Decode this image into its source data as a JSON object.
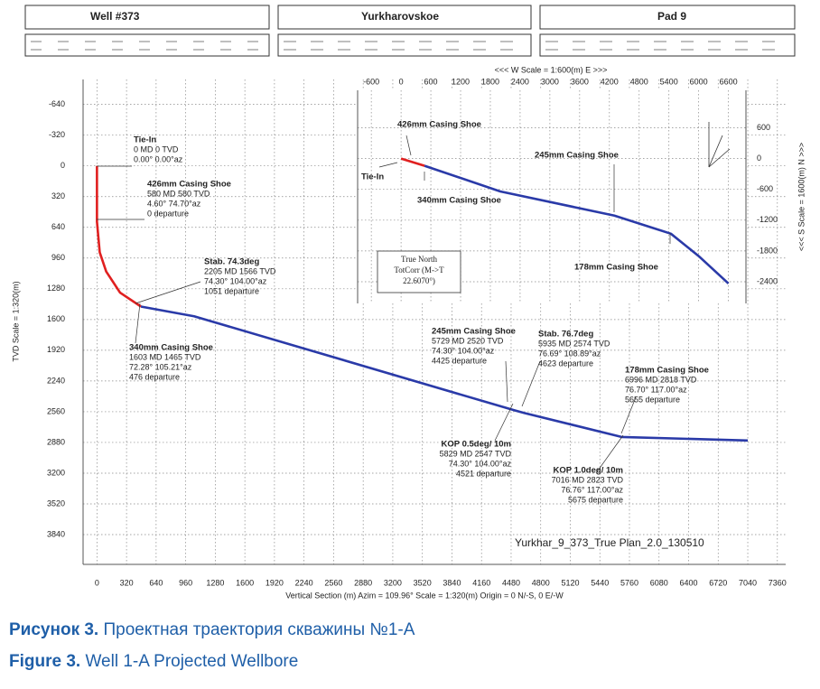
{
  "header": {
    "well": "Well #373",
    "field": "Yurkharovskoe",
    "pad": "Pad 9"
  },
  "caption": {
    "ru_label": "Рисунок 3.",
    "ru_text": "Проектная траектория скважины №1-А",
    "en_label": "Figure 3.",
    "en_text": "Well 1-A Projected Wellbore"
  },
  "chart_data": [
    {
      "type": "line",
      "x_label": "Vertical Section (m) Azim = 109.96° Scale = 1:320(m) Origin = 0 N/-S, 0 E/-W",
      "y_label": "TVD Scale = 1:320(m)",
      "xlim": [
        -150,
        7450
      ],
      "ylim": [
        -900,
        4150
      ],
      "y_inverted": true,
      "grid": true,
      "xticks": [
        0,
        320,
        640,
        960,
        1280,
        1600,
        1920,
        2240,
        2560,
        2880,
        3200,
        3520,
        3840,
        4160,
        4480,
        4800,
        5120,
        5440,
        5760,
        6080,
        6400,
        6720,
        7040,
        7360
      ],
      "yticks": [
        -640,
        -320,
        0,
        320,
        640,
        960,
        1280,
        1600,
        1920,
        2240,
        2560,
        2880,
        3200,
        3520,
        3840
      ],
      "series": [
        {
          "color": "#e02020",
          "x": [
            0,
            0,
            30,
            100,
            250,
            476
          ],
          "values": [
            0,
            580,
            900,
            1100,
            1320,
            1465
          ]
        },
        {
          "color": "#2a3aa8",
          "x": [
            476,
            1051,
            4425,
            4521,
            4623,
            5655,
            5675,
            7040
          ],
          "values": [
            1465,
            1566,
            2520,
            2547,
            2574,
            2818,
            2823,
            2860
          ]
        }
      ],
      "annotations": [
        [
          "Tie-In",
          "0 MD  0 TVD",
          "0.00°  0.00°az"
        ],
        [
          "426mm Casing Shoe",
          "580 MD  580 TVD",
          "4.60°  74.70°az",
          "0 departure"
        ],
        [
          "Stab. 74.3deg",
          "2205 MD  1566 TVD",
          "74.30°  104.00°az",
          "1051 departure"
        ],
        [
          "340mm Casing Shoe",
          "1603 MD  1465 TVD",
          "72.28°  105.21°az",
          "476 departure"
        ],
        [
          "245mm Casing Shoe",
          "5729 MD  2520 TVD",
          "74.30°  104.00°az",
          "4425 departure"
        ],
        [
          "Stab. 76.7deg",
          "5935 MD  2574 TVD",
          "76.69°  108.89°az",
          "4623 departure"
        ],
        [
          "178mm Casing Shoe",
          "6996 MD  2818 TVD",
          "76.70°  117.00°az",
          "5655 departure"
        ],
        [
          "KOP 0.5deg/ 10m",
          "5829 MD  2547 TVD",
          "74.30°  104.00°az",
          "4521 departure"
        ],
        [
          "KOP 1.0deg/ 10m",
          "7016 MD  2823 TVD",
          "76.76°  117.00°az",
          "5675 departure"
        ]
      ],
      "plan_name": "Yurkhar_9_373_True Plan_2.0_130510"
    },
    {
      "type": "line",
      "x_label": "<<< W  Scale = 1:600(m)  E >>>",
      "y_label": "<<< S  Scale = 1600(m)  N >>>",
      "xlim": [
        -876,
        6953
      ],
      "ylim": [
        -2822,
        1330
      ],
      "grid": true,
      "xticks": [
        -600,
        0,
        600,
        1200,
        1800,
        2400,
        3000,
        3600,
        4200,
        4800,
        5400,
        6000,
        6600
      ],
      "yticks": [
        600,
        0,
        -600,
        -1200,
        -1800,
        -2400
      ],
      "series": [
        {
          "color": "#e02020",
          "x": [
            0,
            474
          ],
          "values": [
            0,
            -141
          ]
        },
        {
          "color": "#2a3aa8",
          "x": [
            474,
            2000,
            4300,
            5440,
            6000,
            6600
          ],
          "values": [
            -141,
            -640,
            -1111,
            -1464,
            -1900,
            -2434
          ]
        }
      ],
      "annotations": [
        [
          "426mm Casing Shoe"
        ],
        [
          "Tie-In"
        ],
        [
          "340mm Casing Shoe"
        ],
        [
          "245mm Casing Shoe"
        ],
        [
          "178mm Casing Shoe"
        ]
      ],
      "north_box": [
        "True North",
        "TotCorr (M->T",
        "22.6070°)"
      ]
    }
  ]
}
